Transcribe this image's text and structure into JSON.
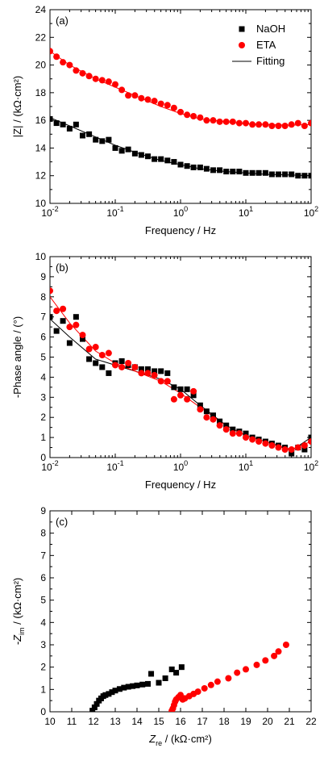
{
  "chart_data": [
    {
      "type": "scatter",
      "panel_label": "(a)",
      "xlabel": "Frequency / Hz",
      "ylabel": "|Z| / (kΩ·cm²)",
      "xscale": "log",
      "xlim": [
        0.01,
        100
      ],
      "ylim": [
        10,
        24
      ],
      "xticks": [
        0.01,
        0.1,
        1,
        10,
        100
      ],
      "xtick_labels": [
        [
          "10",
          "-2"
        ],
        [
          "10",
          "-1"
        ],
        [
          "10",
          "0"
        ],
        [
          "10",
          "1"
        ],
        [
          "10",
          "2"
        ]
      ],
      "yticks": [
        10,
        12,
        14,
        16,
        18,
        20,
        22,
        24
      ],
      "ytick_labels": [
        "10",
        "12",
        "14",
        "16",
        "18",
        "20",
        "22",
        "24"
      ],
      "legend": {
        "placement": "top-right",
        "entries": [
          "NaOH",
          "ETA",
          "Fitting"
        ]
      },
      "series": [
        {
          "name": "NaOH",
          "marker": "square",
          "color": "#000000",
          "x": [
            0.01,
            0.0126,
            0.0158,
            0.02,
            0.0251,
            0.0316,
            0.0398,
            0.0501,
            0.0631,
            0.0794,
            0.1,
            0.126,
            0.158,
            0.2,
            0.251,
            0.316,
            0.398,
            0.501,
            0.631,
            0.794,
            1,
            1.26,
            1.58,
            2,
            2.51,
            3.16,
            3.98,
            5.01,
            6.31,
            7.94,
            10,
            12.6,
            15.8,
            20,
            25.1,
            31.6,
            39.8,
            50.1,
            63.1,
            79.4,
            100
          ],
          "y": [
            16.1,
            15.8,
            15.7,
            15.4,
            15.7,
            14.9,
            15.0,
            14.6,
            14.5,
            14.6,
            14.0,
            13.8,
            13.9,
            13.6,
            13.5,
            13.4,
            13.2,
            13.2,
            13.1,
            13.0,
            12.8,
            12.7,
            12.6,
            12.6,
            12.5,
            12.4,
            12.4,
            12.3,
            12.3,
            12.3,
            12.2,
            12.2,
            12.2,
            12.2,
            12.1,
            12.1,
            12.1,
            12.1,
            12.0,
            12.0,
            12.0
          ]
        },
        {
          "name": "ETA",
          "marker": "circle",
          "color": "#ff0000",
          "x": [
            0.01,
            0.0126,
            0.0158,
            0.02,
            0.0251,
            0.0316,
            0.0398,
            0.0501,
            0.0631,
            0.0794,
            0.1,
            0.126,
            0.158,
            0.2,
            0.251,
            0.316,
            0.398,
            0.501,
            0.631,
            0.794,
            1,
            1.26,
            1.58,
            2,
            2.51,
            3.16,
            3.98,
            5.01,
            6.31,
            7.94,
            10,
            12.6,
            15.8,
            20,
            25.1,
            31.6,
            39.8,
            50.1,
            63.1,
            79.4,
            100
          ],
          "y": [
            21.0,
            20.6,
            20.2,
            20.0,
            19.6,
            19.4,
            19.2,
            19.0,
            18.9,
            18.8,
            18.6,
            18.2,
            17.8,
            17.8,
            17.6,
            17.5,
            17.4,
            17.2,
            17.1,
            16.9,
            16.6,
            16.4,
            16.3,
            16.2,
            16.0,
            16.0,
            15.9,
            15.9,
            15.9,
            15.8,
            15.8,
            15.7,
            15.7,
            15.7,
            15.6,
            15.6,
            15.6,
            15.7,
            15.8,
            15.6,
            15.8
          ]
        },
        {
          "name": "Fitting",
          "marker": "line",
          "color": "#000000",
          "x": [
            0.01,
            0.02,
            0.05,
            0.1,
            0.2,
            0.5,
            1,
            2,
            5,
            10,
            20,
            50,
            100
          ],
          "y": [
            16.2,
            15.6,
            14.8,
            14.2,
            13.7,
            13.1,
            12.8,
            12.5,
            12.3,
            12.2,
            12.1,
            12.05,
            12.0
          ]
        },
        {
          "name": "",
          "marker": "line",
          "color": "#ff0000",
          "x": [
            0.01,
            0.02,
            0.05,
            0.1,
            0.2,
            0.5,
            1,
            2,
            5,
            10,
            20,
            50,
            100
          ],
          "y": [
            21.0,
            20.0,
            19.0,
            18.4,
            17.8,
            17.0,
            16.5,
            16.1,
            15.9,
            15.75,
            15.7,
            15.65,
            15.7
          ]
        }
      ]
    },
    {
      "type": "scatter",
      "panel_label": "(b)",
      "xlabel": "Frequency / Hz",
      "ylabel": "-Phase angle / (°)",
      "xscale": "log",
      "xlim": [
        0.01,
        100
      ],
      "ylim": [
        0,
        10
      ],
      "xticks": [
        0.01,
        0.1,
        1,
        10,
        100
      ],
      "xtick_labels": [
        [
          "10",
          "-2"
        ],
        [
          "10",
          "-1"
        ],
        [
          "10",
          "0"
        ],
        [
          "10",
          "1"
        ],
        [
          "10",
          "2"
        ]
      ],
      "yticks": [
        0,
        1,
        2,
        3,
        4,
        5,
        6,
        7,
        8,
        9,
        10
      ],
      "ytick_labels": [
        "0",
        "1",
        "2",
        "3",
        "4",
        "5",
        "6",
        "7",
        "8",
        "9",
        "10"
      ],
      "series": [
        {
          "name": "NaOH",
          "marker": "square",
          "color": "#000000",
          "x": [
            0.01,
            0.0126,
            0.0158,
            0.02,
            0.0251,
            0.0316,
            0.0398,
            0.0501,
            0.0631,
            0.0794,
            0.1,
            0.126,
            0.158,
            0.2,
            0.251,
            0.316,
            0.398,
            0.501,
            0.631,
            0.794,
            1,
            1.26,
            1.58,
            2,
            2.51,
            3.16,
            3.98,
            5.01,
            6.31,
            7.94,
            10,
            12.6,
            15.8,
            20,
            25.1,
            31.6,
            39.8,
            50.1,
            63.1,
            79.4,
            100
          ],
          "y": [
            7.0,
            6.3,
            6.8,
            5.7,
            7.0,
            5.9,
            4.9,
            4.7,
            4.5,
            4.2,
            4.7,
            4.8,
            4.6,
            4.5,
            4.4,
            4.4,
            4.3,
            4.3,
            4.2,
            3.5,
            3.4,
            3.4,
            3.1,
            2.6,
            2.3,
            2.1,
            1.8,
            1.6,
            1.4,
            1.3,
            1.2,
            1.0,
            0.9,
            0.8,
            0.7,
            0.6,
            0.5,
            0.2,
            0.5,
            0.4,
            1.0
          ]
        },
        {
          "name": "ETA",
          "marker": "circle",
          "color": "#ff0000",
          "x": [
            0.01,
            0.0126,
            0.0158,
            0.02,
            0.0251,
            0.0316,
            0.0398,
            0.0501,
            0.0631,
            0.0794,
            0.1,
            0.126,
            0.158,
            0.2,
            0.251,
            0.316,
            0.398,
            0.501,
            0.631,
            0.794,
            1,
            1.26,
            1.58,
            2,
            2.51,
            3.16,
            3.98,
            5.01,
            6.31,
            7.94,
            10,
            12.6,
            15.8,
            20,
            25.1,
            31.6,
            39.8,
            50.1,
            63.1,
            79.4,
            100
          ],
          "y": [
            8.3,
            7.3,
            7.4,
            6.5,
            6.6,
            6.1,
            5.4,
            5.5,
            5.1,
            5.2,
            4.6,
            4.5,
            4.7,
            4.5,
            4.2,
            4.2,
            4.1,
            3.8,
            3.8,
            2.9,
            3.1,
            2.9,
            3.3,
            2.4,
            2.0,
            1.9,
            1.6,
            1.4,
            1.2,
            1.2,
            1.0,
            0.9,
            0.8,
            0.7,
            0.6,
            0.5,
            0.4,
            0.4,
            0.5,
            0.6,
            0.8
          ]
        },
        {
          "name": "",
          "marker": "line",
          "color": "#000000",
          "x": [
            0.01,
            0.02,
            0.05,
            0.1,
            0.2,
            0.5,
            1,
            2,
            5,
            10,
            20,
            50,
            100
          ],
          "y": [
            6.9,
            6.0,
            4.9,
            4.6,
            4.3,
            3.9,
            3.4,
            2.6,
            1.6,
            1.1,
            0.8,
            0.35,
            1.0
          ]
        },
        {
          "name": "",
          "marker": "line",
          "color": "#ff0000",
          "x": [
            0.01,
            0.02,
            0.05,
            0.1,
            0.2,
            0.5,
            1,
            2,
            5,
            10,
            20,
            50,
            100
          ],
          "y": [
            8.0,
            6.7,
            5.3,
            4.7,
            4.3,
            3.8,
            3.2,
            2.5,
            1.6,
            1.1,
            0.8,
            0.4,
            0.8
          ]
        }
      ]
    },
    {
      "type": "scatter",
      "panel_label": "(c)",
      "xlabel_main": "Z",
      "xlabel_sub": "re",
      "xlabel_rest": " / (kΩ·cm²)",
      "ylabel_main": "-Z",
      "ylabel_sub": "im",
      "ylabel_rest": " / (kΩ·cm²)",
      "xlim": [
        10,
        22
      ],
      "ylim": [
        0,
        9
      ],
      "xticks": [
        10,
        11,
        12,
        13,
        14,
        15,
        16,
        17,
        18,
        19,
        20,
        21,
        22
      ],
      "xtick_labels": [
        "10",
        "11",
        "12",
        "13",
        "14",
        "15",
        "16",
        "17",
        "18",
        "19",
        "20",
        "21",
        "22"
      ],
      "yticks": [
        0,
        1,
        2,
        3,
        4,
        5,
        6,
        7,
        8,
        9
      ],
      "ytick_labels": [
        "0",
        "1",
        "2",
        "3",
        "4",
        "5",
        "6",
        "7",
        "8",
        "9"
      ],
      "series": [
        {
          "name": "NaOH",
          "marker": "square",
          "color": "#000000",
          "x": [
            11.95,
            12.05,
            12.15,
            12.25,
            12.35,
            12.45,
            12.55,
            12.7,
            12.85,
            13.0,
            13.2,
            13.4,
            13.6,
            13.8,
            14.0,
            14.25,
            14.5,
            14.65,
            15.0,
            15.3,
            15.6,
            15.8,
            16.05
          ],
          "y": [
            0.05,
            0.2,
            0.35,
            0.5,
            0.6,
            0.7,
            0.75,
            0.8,
            0.88,
            0.95,
            1.02,
            1.08,
            1.12,
            1.15,
            1.18,
            1.22,
            1.25,
            1.7,
            1.3,
            1.5,
            1.9,
            1.75,
            2.0
          ]
        },
        {
          "name": "ETA",
          "marker": "circle",
          "color": "#ff0000",
          "x": [
            15.6,
            15.65,
            15.7,
            15.75,
            15.8,
            15.9,
            16.0,
            16.1,
            16.2,
            16.4,
            16.6,
            16.8,
            17.1,
            17.4,
            17.7,
            18.2,
            18.6,
            19.0,
            19.5,
            19.9,
            20.3,
            20.5,
            20.85
          ],
          "y": [
            0.05,
            0.15,
            0.3,
            0.45,
            0.55,
            0.65,
            0.75,
            0.55,
            0.6,
            0.7,
            0.8,
            0.9,
            1.05,
            1.2,
            1.35,
            1.5,
            1.75,
            1.9,
            2.1,
            2.3,
            2.5,
            2.7,
            3.0
          ]
        }
      ]
    }
  ]
}
